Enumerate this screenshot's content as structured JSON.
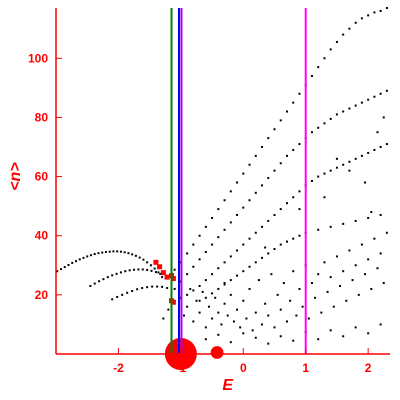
{
  "chart_data": {
    "type": "scatter",
    "title": "",
    "xlabel": "E",
    "ylabel": "<n>",
    "xlim": [
      -3.0,
      2.35
    ],
    "ylim": [
      0,
      117
    ],
    "x_ticks": [
      -2,
      -1,
      0,
      1,
      2
    ],
    "x_tick_labels": [
      "-2",
      "-1",
      "0",
      "1",
      "2"
    ],
    "y_ticks": [
      20,
      40,
      60,
      80,
      100
    ],
    "y_tick_labels": [
      "20",
      "40",
      "60",
      "80",
      "100"
    ],
    "grid": false,
    "legend": "none",
    "colors": {
      "axis": "#ff0000",
      "points": "#000000",
      "highlight": "#ff0000",
      "green_line": "#008000",
      "blue_line": "#0000ff",
      "purple_line": "#aa00ff",
      "magenta_line": "#ff00ff"
    },
    "vertical_lines": [
      {
        "x": -1.15,
        "color": "#008000"
      },
      {
        "x": -1.03,
        "color": "#0000ff"
      },
      {
        "x": -0.99,
        "color": "#aa00ff"
      },
      {
        "x": 1.0,
        "color": "#ff00ff"
      }
    ],
    "series": [
      {
        "type": "arc",
        "color": "#000000",
        "points": [
          [
            -2.98,
            28.0
          ],
          [
            -2.92,
            28.7
          ],
          [
            -2.86,
            29.4
          ],
          [
            -2.8,
            30.1
          ],
          [
            -2.74,
            30.8
          ],
          [
            -2.68,
            31.4
          ],
          [
            -2.62,
            32.0
          ],
          [
            -2.56,
            32.5
          ],
          [
            -2.5,
            33.0
          ],
          [
            -2.44,
            33.4
          ],
          [
            -2.38,
            33.8
          ],
          [
            -2.32,
            34.1
          ],
          [
            -2.26,
            34.3
          ],
          [
            -2.2,
            34.5
          ],
          [
            -2.14,
            34.6
          ],
          [
            -2.08,
            34.7
          ],
          [
            -2.02,
            34.7
          ],
          [
            -1.96,
            34.6
          ],
          [
            -1.9,
            34.4
          ],
          [
            -1.84,
            34.1
          ],
          [
            -1.78,
            33.7
          ],
          [
            -1.72,
            33.2
          ],
          [
            -1.66,
            32.6
          ],
          [
            -1.6,
            31.9
          ],
          [
            -1.54,
            31.0
          ],
          [
            -1.48,
            30.0
          ],
          [
            -1.42,
            28.9
          ],
          [
            -1.36,
            27.6
          ],
          [
            -1.3,
            26.0
          ]
        ]
      },
      {
        "type": "arc",
        "color": "#000000",
        "points": [
          [
            -2.45,
            23.0
          ],
          [
            -2.38,
            23.8
          ],
          [
            -2.31,
            24.6
          ],
          [
            -2.24,
            25.3
          ],
          [
            -2.17,
            26.0
          ],
          [
            -2.1,
            26.6
          ],
          [
            -2.03,
            27.1
          ],
          [
            -1.96,
            27.6
          ],
          [
            -1.89,
            28.0
          ],
          [
            -1.82,
            28.3
          ],
          [
            -1.75,
            28.5
          ],
          [
            -1.68,
            28.6
          ],
          [
            -1.61,
            28.6
          ],
          [
            -1.54,
            28.4
          ],
          [
            -1.47,
            28.1
          ],
          [
            -1.4,
            27.7
          ],
          [
            -1.33,
            27.1
          ]
        ]
      },
      {
        "type": "arc",
        "color": "#000000",
        "points": [
          [
            -2.1,
            18.5
          ],
          [
            -2.02,
            19.3
          ],
          [
            -1.94,
            20.0
          ],
          [
            -1.86,
            20.7
          ],
          [
            -1.78,
            21.3
          ],
          [
            -1.7,
            21.9
          ],
          [
            -1.62,
            22.3
          ],
          [
            -1.54,
            22.6
          ],
          [
            -1.46,
            22.8
          ],
          [
            -1.38,
            22.8
          ],
          [
            -1.3,
            22.7
          ],
          [
            -1.22,
            22.3
          ]
        ]
      },
      {
        "type": "fan",
        "color": "#000000",
        "points": [
          [
            -1.2,
            26.0
          ],
          [
            -1.1,
            28.5
          ],
          [
            -1.0,
            31.0
          ],
          [
            -0.9,
            34.0
          ],
          [
            -0.8,
            37.0
          ],
          [
            -0.7,
            40.0
          ],
          [
            -0.6,
            43.0
          ],
          [
            -0.5,
            46.0
          ],
          [
            -0.4,
            49.0
          ],
          [
            -0.3,
            52.0
          ],
          [
            -0.2,
            55.0
          ],
          [
            -0.1,
            58.0
          ],
          [
            0.0,
            61.0
          ],
          [
            0.1,
            64.0
          ],
          [
            0.2,
            67.0
          ],
          [
            0.3,
            70.0
          ],
          [
            0.4,
            73.0
          ],
          [
            0.5,
            76.0
          ],
          [
            0.6,
            79.0
          ],
          [
            0.7,
            82.0
          ],
          [
            0.8,
            85.0
          ],
          [
            0.9,
            88.0
          ],
          [
            1.0,
            91.0
          ],
          [
            1.1,
            94.0
          ],
          [
            1.2,
            97.0
          ],
          [
            1.3,
            100.0
          ],
          [
            1.4,
            103.0
          ],
          [
            1.5,
            105.5
          ],
          [
            1.6,
            108.0
          ],
          [
            1.7,
            110.0
          ],
          [
            1.8,
            112.0
          ],
          [
            1.9,
            113.5
          ],
          [
            2.0,
            114.5
          ],
          [
            2.1,
            115.5
          ],
          [
            2.2,
            116.0
          ],
          [
            2.3,
            117.0
          ]
        ]
      },
      {
        "type": "fan",
        "color": "#000000",
        "points": [
          [
            -1.1,
            22.0
          ],
          [
            -1.0,
            24.5
          ],
          [
            -0.9,
            27.0
          ],
          [
            -0.8,
            29.5
          ],
          [
            -0.7,
            32.0
          ],
          [
            -0.6,
            34.5
          ],
          [
            -0.5,
            37.0
          ],
          [
            -0.4,
            39.5
          ],
          [
            -0.3,
            42.0
          ],
          [
            -0.2,
            44.5
          ],
          [
            -0.1,
            47.0
          ],
          [
            0.0,
            49.5
          ],
          [
            0.1,
            52.0
          ],
          [
            0.2,
            54.5
          ],
          [
            0.3,
            57.0
          ],
          [
            0.4,
            59.5
          ],
          [
            0.5,
            62.0
          ],
          [
            0.6,
            64.5
          ],
          [
            0.7,
            67.0
          ],
          [
            0.8,
            69.0
          ],
          [
            0.9,
            71.0
          ],
          [
            1.0,
            73.0
          ],
          [
            1.1,
            75.0
          ],
          [
            1.2,
            76.5
          ],
          [
            1.3,
            78.0
          ],
          [
            1.4,
            79.5
          ],
          [
            1.5,
            81.0
          ],
          [
            1.6,
            82.0
          ],
          [
            1.7,
            83.0
          ],
          [
            1.8,
            84.0
          ],
          [
            1.9,
            85.0
          ],
          [
            2.0,
            86.0
          ],
          [
            2.1,
            87.0
          ],
          [
            2.2,
            88.0
          ],
          [
            2.3,
            89.0
          ]
        ]
      },
      {
        "type": "fan",
        "color": "#000000",
        "points": [
          [
            -0.9,
            20.0
          ],
          [
            -0.8,
            21.5
          ],
          [
            -0.7,
            23.0
          ],
          [
            -0.6,
            25.0
          ],
          [
            -0.5,
            27.0
          ],
          [
            -0.4,
            29.0
          ],
          [
            -0.3,
            31.0
          ],
          [
            -0.2,
            33.0
          ],
          [
            -0.1,
            35.0
          ],
          [
            0.0,
            37.0
          ],
          [
            0.1,
            39.0
          ],
          [
            0.2,
            41.0
          ],
          [
            0.3,
            43.0
          ],
          [
            0.4,
            45.0
          ],
          [
            0.5,
            47.0
          ],
          [
            0.6,
            49.0
          ],
          [
            0.7,
            51.0
          ],
          [
            0.8,
            53.0
          ],
          [
            0.9,
            55.0
          ],
          [
            1.0,
            57.0
          ],
          [
            1.1,
            58.5
          ],
          [
            1.2,
            60.0
          ],
          [
            1.3,
            61.0
          ],
          [
            1.4,
            62.0
          ],
          [
            1.5,
            63.0
          ],
          [
            1.6,
            64.0
          ],
          [
            1.7,
            65.0
          ],
          [
            1.8,
            66.0
          ],
          [
            1.9,
            67.0
          ],
          [
            2.0,
            68.0
          ],
          [
            2.1,
            69.0
          ],
          [
            2.2,
            70.0
          ],
          [
            2.3,
            71.0
          ]
        ]
      },
      {
        "type": "fan",
        "color": "#000000",
        "points": [
          [
            -0.7,
            18.0
          ],
          [
            -0.6,
            19.0
          ],
          [
            -0.5,
            20.5
          ],
          [
            -0.4,
            22.0
          ],
          [
            -0.3,
            23.5
          ],
          [
            -0.2,
            25.0
          ],
          [
            -0.1,
            26.5
          ],
          [
            0.0,
            28.0
          ],
          [
            0.1,
            29.5
          ],
          [
            0.2,
            31.0
          ],
          [
            0.3,
            32.5
          ],
          [
            0.4,
            34.0
          ],
          [
            0.5,
            35.5
          ],
          [
            0.6,
            37.0
          ],
          [
            0.7,
            38.0
          ],
          [
            0.8,
            39.0
          ],
          [
            0.9,
            40.0
          ],
          [
            1.0,
            41.0
          ],
          [
            1.2,
            42.0
          ],
          [
            1.4,
            43.0
          ],
          [
            1.6,
            44.0
          ],
          [
            1.8,
            45.0
          ],
          [
            2.0,
            46.0
          ],
          [
            2.2,
            47.0
          ]
        ]
      },
      {
        "type": "scatter",
        "color": "#000000",
        "points": [
          [
            -1.28,
            12.0
          ],
          [
            -1.2,
            15.0
          ],
          [
            -1.1,
            17.5
          ],
          [
            -1.0,
            19.0
          ],
          [
            -0.95,
            13.0
          ],
          [
            -0.9,
            16.0
          ],
          [
            -0.85,
            22.0
          ],
          [
            -0.8,
            11.0
          ],
          [
            -0.75,
            18.0
          ],
          [
            -0.7,
            14.0
          ],
          [
            -0.65,
            21.0
          ],
          [
            -0.6,
            9.0
          ],
          [
            -0.55,
            16.0
          ],
          [
            -0.5,
            12.0
          ],
          [
            -0.45,
            19.0
          ],
          [
            -0.4,
            14.0
          ],
          [
            -0.35,
            10.0
          ],
          [
            -0.3,
            17.0
          ],
          [
            -0.25,
            13.0
          ],
          [
            -0.2,
            20.0
          ],
          [
            -0.15,
            11.0
          ],
          [
            -0.1,
            15.0
          ],
          [
            -0.05,
            9.0
          ],
          [
            0.0,
            18.0
          ],
          [
            0.05,
            12.0
          ],
          [
            0.1,
            22.0
          ],
          [
            0.15,
            8.0
          ],
          [
            0.2,
            14.0
          ],
          [
            0.25,
            25.0
          ],
          [
            0.3,
            10.0
          ],
          [
            0.35,
            17.0
          ],
          [
            0.4,
            13.0
          ],
          [
            0.45,
            27.0
          ],
          [
            0.5,
            9.0
          ],
          [
            0.55,
            20.0
          ],
          [
            0.6,
            15.0
          ],
          [
            0.65,
            24.0
          ],
          [
            0.7,
            11.0
          ],
          [
            0.75,
            18.0
          ],
          [
            0.8,
            28.0
          ],
          [
            0.85,
            13.0
          ],
          [
            0.9,
            22.0
          ],
          [
            0.95,
            16.0
          ],
          [
            1.0,
            30.0
          ],
          [
            1.05,
            12.0
          ],
          [
            1.1,
            24.0
          ],
          [
            1.15,
            19.0
          ],
          [
            1.2,
            27.0
          ],
          [
            1.25,
            14.0
          ],
          [
            1.3,
            31.0
          ],
          [
            1.35,
            21.0
          ],
          [
            1.4,
            26.0
          ],
          [
            1.45,
            16.0
          ],
          [
            1.5,
            33.0
          ],
          [
            1.55,
            23.0
          ],
          [
            1.6,
            28.0
          ],
          [
            1.65,
            18.0
          ],
          [
            1.7,
            35.0
          ],
          [
            1.75,
            25.0
          ],
          [
            1.8,
            30.0
          ],
          [
            1.85,
            20.0
          ],
          [
            1.9,
            37.0
          ],
          [
            1.95,
            27.0
          ],
          [
            2.0,
            32.0
          ],
          [
            2.05,
            22.0
          ],
          [
            2.1,
            39.0
          ],
          [
            2.15,
            29.0
          ],
          [
            2.2,
            34.0
          ],
          [
            2.25,
            24.0
          ],
          [
            2.3,
            41.0
          ],
          [
            -0.6,
            5.0
          ],
          [
            -0.4,
            6.5
          ],
          [
            -0.2,
            4.0
          ],
          [
            0.0,
            7.0
          ],
          [
            0.2,
            5.5
          ],
          [
            0.4,
            3.5
          ],
          [
            0.6,
            6.0
          ],
          [
            0.8,
            4.5
          ],
          [
            1.0,
            7.5
          ],
          [
            1.2,
            5.0
          ],
          [
            1.4,
            8.0
          ],
          [
            1.6,
            6.0
          ],
          [
            1.8,
            9.0
          ],
          [
            2.0,
            7.0
          ],
          [
            2.2,
            10.0
          ],
          [
            -0.3,
            24.0
          ],
          [
            0.35,
            36.0
          ],
          [
            0.9,
            49.0
          ],
          [
            1.3,
            53.0
          ],
          [
            1.5,
            66.0
          ],
          [
            1.7,
            62.0
          ],
          [
            1.95,
            58.0
          ],
          [
            2.15,
            75.0
          ],
          [
            2.25,
            80.0
          ],
          [
            2.05,
            48.0
          ]
        ]
      },
      {
        "type": "highlight",
        "color": "#ff0000",
        "points": [
          [
            -1.4,
            31.0
          ],
          [
            -1.34,
            29.5
          ],
          [
            -1.28,
            27.5
          ],
          [
            -1.22,
            26.0
          ],
          [
            -1.15,
            26.5
          ],
          [
            -1.12,
            25.5
          ],
          [
            -1.15,
            18.0
          ],
          [
            -1.12,
            17.5
          ]
        ]
      }
    ],
    "bubbles": [
      {
        "x": -1.0,
        "y": 0,
        "size": 1,
        "color": "#ff0000"
      },
      {
        "x": -0.42,
        "y": 0.5,
        "size": 0.2,
        "color": "#ff0000"
      }
    ]
  }
}
